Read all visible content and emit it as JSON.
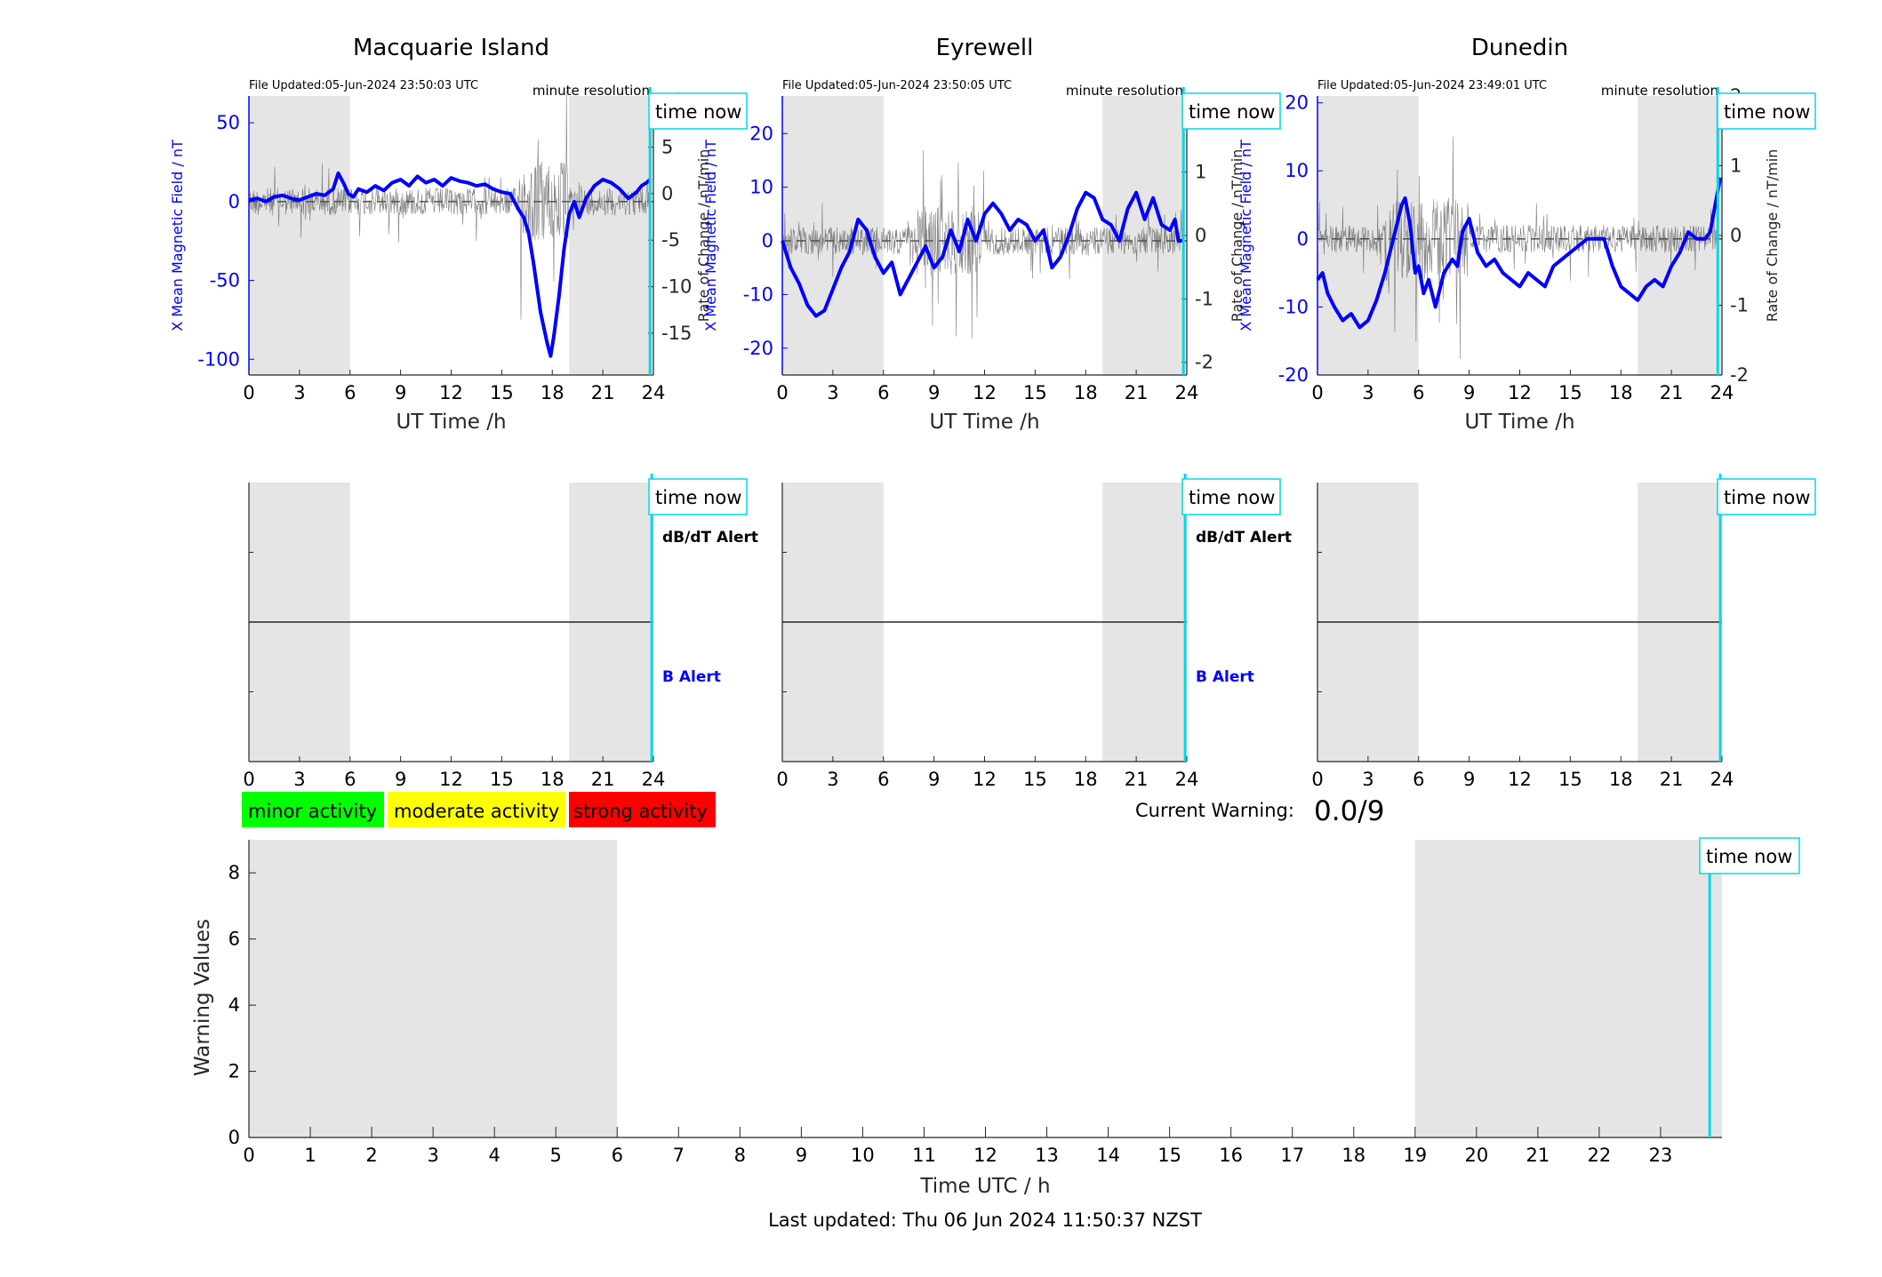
{
  "figure": {
    "last_updated": "Last updated: Thu 06 Jun 2024 11:50:37 NZST",
    "current_warning_label": "Current Warning:",
    "current_warning_value": "0.0/9",
    "legend": [
      {
        "label": "minor activity",
        "color": "#00ff00"
      },
      {
        "label": "moderate activity",
        "color": "#ffff00"
      },
      {
        "label": "strong activity",
        "color": "#ff0000"
      }
    ],
    "time_now_label": "time now",
    "minute_resolution_label": "minute resolution",
    "dbdt_alert_label": "dB/dT Alert",
    "b_alert_label": "B Alert",
    "colors": {
      "field": "#0000ff",
      "time_now": "#00d8e8",
      "shade": "#e5e5e5",
      "rate": "#555555"
    }
  },
  "chart_data": [
    {
      "type": "line",
      "title": "Macquarie Island",
      "file_updated": "File Updated:05-Jun-2024 23:50:03 UTC",
      "xlabel": "UT Time /h",
      "ylabel": "X Mean Magnetic Field / nT",
      "y2label": "Rate of Change / nT/min",
      "xlim": [
        0,
        24
      ],
      "ylim": [
        -110,
        67
      ],
      "y2lim": [
        -19.5,
        10.5
      ],
      "xticks": [
        0,
        3,
        6,
        9,
        12,
        15,
        18,
        21,
        24
      ],
      "yticks": [
        -100,
        -50,
        0,
        50
      ],
      "y2ticks": [
        -15,
        -10,
        -5,
        0,
        5,
        10
      ],
      "shaded": [
        [
          0,
          6
        ],
        [
          19,
          24
        ]
      ],
      "time_now": 23.8,
      "series": [
        {
          "role": "field",
          "x": [
            0,
            0.5,
            1,
            1.5,
            2,
            2.5,
            3,
            3.5,
            4,
            4.5,
            5,
            5.3,
            5.6,
            5.9,
            6.2,
            6.5,
            7,
            7.5,
            8,
            8.5,
            9,
            9.5,
            10,
            10.5,
            11,
            11.5,
            12,
            12.5,
            13,
            13.5,
            14,
            14.5,
            15,
            15.5,
            16,
            16.3,
            16.6,
            16.9,
            17.1,
            17.3,
            17.5,
            17.7,
            17.9,
            18.1,
            18.4,
            18.7,
            19,
            19.3,
            19.6,
            20,
            20.5,
            21,
            21.5,
            22,
            22.5,
            23,
            23.3,
            23.6,
            23.8
          ],
          "values": [
            1,
            2,
            0,
            3,
            4,
            2,
            1,
            3,
            5,
            4,
            8,
            18,
            12,
            5,
            3,
            8,
            6,
            10,
            7,
            12,
            14,
            10,
            16,
            12,
            14,
            10,
            15,
            13,
            12,
            10,
            11,
            8,
            6,
            5,
            -5,
            -10,
            -20,
            -40,
            -55,
            -70,
            -80,
            -90,
            -98,
            -85,
            -60,
            -30,
            -8,
            0,
            -10,
            2,
            10,
            14,
            12,
            8,
            2,
            6,
            10,
            12,
            14
          ]
        },
        {
          "role": "rate",
          "x": [
            0,
            6,
            14,
            16,
            19,
            24
          ],
          "values": [
            0,
            0,
            0,
            0,
            0,
            0
          ]
        }
      ]
    },
    {
      "type": "line",
      "title": "Eyrewell",
      "file_updated": "File Updated:05-Jun-2024 23:50:05 UTC",
      "xlabel": "UT Time /h",
      "ylabel": "X Mean Magnetic Field / nT",
      "y2label": "Rate of Change / nT/min",
      "xlim": [
        0,
        24
      ],
      "ylim": [
        -25,
        27
      ],
      "y2lim": [
        -2.2,
        2.2
      ],
      "xticks": [
        0,
        3,
        6,
        9,
        12,
        15,
        18,
        21,
        24
      ],
      "yticks": [
        -20,
        -10,
        0,
        10,
        20
      ],
      "y2ticks": [
        -2,
        -1,
        0,
        1,
        2
      ],
      "shaded": [
        [
          0,
          6
        ],
        [
          19,
          24
        ]
      ],
      "time_now": 23.8,
      "series": [
        {
          "role": "field",
          "x": [
            0,
            0.5,
            1,
            1.5,
            2,
            2.5,
            3,
            3.5,
            4,
            4.5,
            5,
            5.5,
            6,
            6.5,
            7,
            7.5,
            8,
            8.5,
            9,
            9.5,
            10,
            10.5,
            11,
            11.5,
            12,
            12.5,
            13,
            13.5,
            14,
            14.5,
            15,
            15.5,
            16,
            16.5,
            17,
            17.5,
            18,
            18.5,
            19,
            19.5,
            20,
            20.5,
            21,
            21.5,
            22,
            22.5,
            23,
            23.3,
            23.5,
            23.8
          ],
          "values": [
            0,
            -5,
            -8,
            -12,
            -14,
            -13,
            -9,
            -5,
            -2,
            4,
            2,
            -3,
            -6,
            -4,
            -10,
            -7,
            -4,
            -1,
            -5,
            -3,
            2,
            -2,
            4,
            0,
            5,
            7,
            5,
            2,
            4,
            3,
            0,
            2,
            -5,
            -3,
            1,
            6,
            9,
            8,
            4,
            3,
            0,
            6,
            9,
            4,
            8,
            3,
            2,
            4,
            0,
            0
          ]
        },
        {
          "role": "rate",
          "x": [
            0,
            24
          ],
          "values": [
            0,
            0
          ]
        }
      ]
    },
    {
      "type": "line",
      "title": "Dunedin",
      "file_updated": "File Updated:05-Jun-2024 23:49:01 UTC",
      "xlabel": "UT Time /h",
      "ylabel": "X Mean Magnetic Field / nT",
      "y2label": "Rate of Change / nT/min",
      "xlim": [
        0,
        24
      ],
      "ylim": [
        -20,
        21
      ],
      "y2lim": [
        -2,
        2
      ],
      "xticks": [
        0,
        3,
        6,
        9,
        12,
        15,
        18,
        21,
        24
      ],
      "yticks": [
        -20,
        -10,
        0,
        10,
        20
      ],
      "y2ticks": [
        -2,
        -1,
        0,
        1,
        2
      ],
      "shaded": [
        [
          0,
          6
        ],
        [
          19,
          24
        ]
      ],
      "time_now": 23.75,
      "series": [
        {
          "role": "field",
          "x": [
            0,
            0.3,
            0.6,
            1,
            1.5,
            2,
            2.5,
            3,
            3.5,
            4,
            4.5,
            5,
            5.2,
            5.5,
            5.8,
            6,
            6.3,
            6.6,
            7,
            7.5,
            8,
            8.3,
            8.6,
            9,
            9.5,
            10,
            10.5,
            11,
            11.5,
            12,
            12.5,
            13,
            13.5,
            14,
            14.5,
            15,
            15.5,
            16,
            16.5,
            17,
            17.5,
            18,
            18.5,
            19,
            19.5,
            20,
            20.5,
            21,
            21.5,
            22,
            22.5,
            23,
            23.3,
            23.6,
            23.9
          ],
          "values": [
            -6,
            -5,
            -8,
            -10,
            -12,
            -11,
            -13,
            -12,
            -9,
            -5,
            0,
            5,
            6,
            2,
            -5,
            -4,
            -8,
            -6,
            -10,
            -5,
            -3,
            -4,
            1,
            3,
            -2,
            -4,
            -3,
            -5,
            -6,
            -7,
            -5,
            -6,
            -7,
            -4,
            -3,
            -2,
            -1,
            0,
            0,
            0,
            -4,
            -7,
            -8,
            -9,
            -7,
            -6,
            -7,
            -4,
            -2,
            1,
            0,
            0,
            1,
            5,
            9
          ]
        },
        {
          "role": "rate",
          "x": [
            0,
            24
          ],
          "values": [
            0,
            0
          ]
        }
      ]
    },
    {
      "type": "line",
      "title": "",
      "xlabel": "Time UTC / h",
      "ylabel": "Warning Values",
      "xlim": [
        0,
        24
      ],
      "ylim": [
        0,
        9
      ],
      "xticks": [
        0,
        1,
        2,
        3,
        4,
        5,
        6,
        7,
        8,
        9,
        10,
        11,
        12,
        13,
        14,
        15,
        16,
        17,
        18,
        19,
        20,
        21,
        22,
        23
      ],
      "yticks": [
        0,
        2,
        4,
        6,
        8
      ],
      "shaded": [
        [
          0,
          6
        ],
        [
          19,
          24
        ]
      ],
      "time_now": 23.8,
      "series": []
    }
  ],
  "alert_panels": [
    {
      "station": "Macquarie Island",
      "xticks": [
        0,
        3,
        6,
        9,
        12,
        15,
        18,
        21,
        24
      ],
      "xlim": [
        0,
        24
      ],
      "shaded": [
        [
          0,
          6
        ],
        [
          19,
          24
        ]
      ],
      "time_now": 23.9,
      "labels": true
    },
    {
      "station": "Eyrewell",
      "xticks": [
        0,
        3,
        6,
        9,
        12,
        15,
        18,
        21,
        24
      ],
      "xlim": [
        0,
        24
      ],
      "shaded": [
        [
          0,
          6
        ],
        [
          19,
          24
        ]
      ],
      "time_now": 23.9,
      "labels": true
    },
    {
      "station": "Dunedin",
      "xticks": [
        0,
        3,
        6,
        9,
        12,
        15,
        18,
        21,
        24
      ],
      "xlim": [
        0,
        24
      ],
      "shaded": [
        [
          0,
          6
        ],
        [
          19,
          24
        ]
      ],
      "time_now": 23.9,
      "labels": false
    }
  ]
}
